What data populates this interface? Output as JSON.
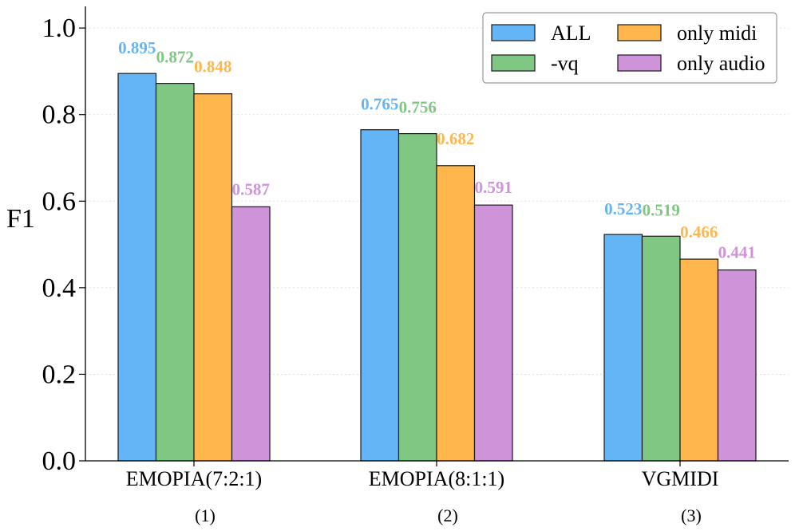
{
  "chart_data": {
    "type": "bar",
    "ylabel": "F1",
    "xlabel": "",
    "ylim": [
      0,
      1.05
    ],
    "yticks": [
      0.0,
      0.2,
      0.4,
      0.6,
      0.8,
      1.0
    ],
    "ytick_labels": [
      "0.0",
      "0.2",
      "0.4",
      "0.6",
      "0.8",
      "1.0"
    ],
    "grid": "horizontal, faint dotted",
    "legend_position": "top-right",
    "categories": [
      "EMOPIA(7:2:1)",
      "EMOPIA(8:1:1)",
      "VGMIDI"
    ],
    "category_sublabels": [
      "(1)",
      "(2)",
      "(3)"
    ],
    "series": [
      {
        "name": "ALL",
        "color": "#64b5f6",
        "values": [
          0.895,
          0.765,
          0.523
        ],
        "labels": [
          "0.895",
          "0.765",
          "0.523"
        ]
      },
      {
        "name": "-vq",
        "color": "#81c784",
        "values": [
          0.872,
          0.756,
          0.519
        ],
        "labels": [
          "0.872",
          "0.756",
          "0.519"
        ]
      },
      {
        "name": "only midi",
        "color": "#ffb74d",
        "values": [
          0.848,
          0.682,
          0.466
        ],
        "labels": [
          "0.848",
          "0.682",
          "0.466"
        ]
      },
      {
        "name": "only audio",
        "color": "#ce93d8",
        "values": [
          0.587,
          0.591,
          0.441
        ],
        "labels": [
          "0.587",
          "0.591",
          "0.441"
        ]
      }
    ]
  }
}
